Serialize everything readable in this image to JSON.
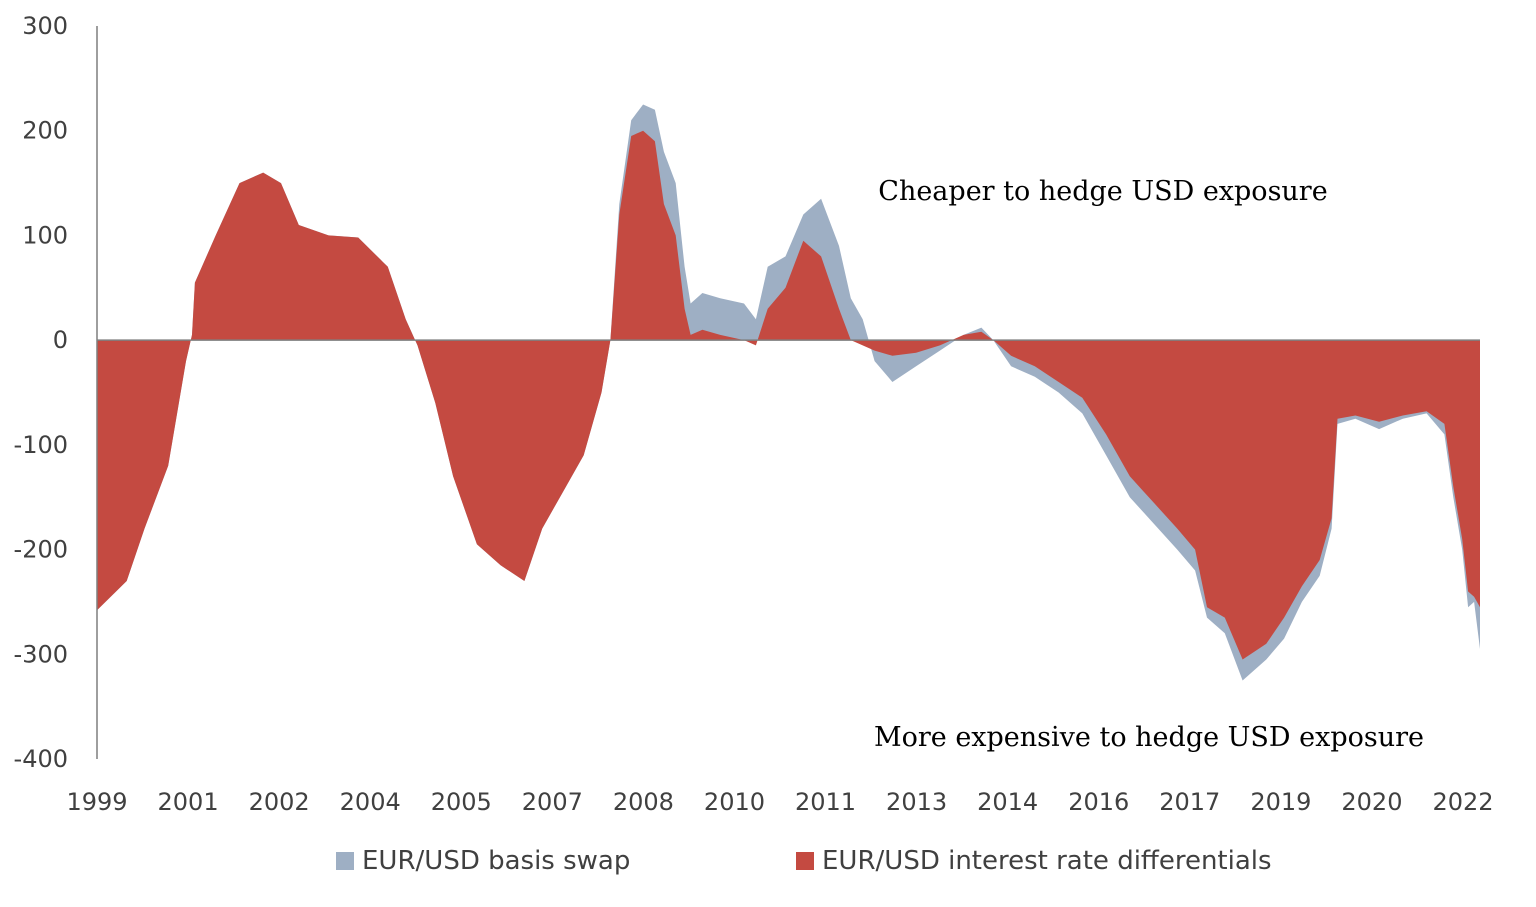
{
  "chart_data": {
    "type": "area",
    "ylim": [
      -400,
      300
    ],
    "y_ticks": [
      300,
      200,
      100,
      0,
      -100,
      -200,
      -300,
      -400
    ],
    "y_tick_labels": [
      "300",
      "200",
      "100",
      "0",
      "-100",
      "-200",
      "-300",
      "-400"
    ],
    "x_tick_labels": [
      "1999",
      "2001",
      "2002",
      "2004",
      "2005",
      "2007",
      "2008",
      "2010",
      "2011",
      "2013",
      "2014",
      "2016",
      "2017",
      "2019",
      "2020",
      "2022"
    ],
    "x_range": [
      1999.0,
      2022.3
    ],
    "grid": false,
    "legend_position": "bottom",
    "annotations": {
      "upper": "Cheaper to hedge USD exposure",
      "lower": "More expensive to hedge USD exposure"
    },
    "series": [
      {
        "name": "EUR/USD basis swap",
        "color": "#9eafc4",
        "points": [
          [
            1999.0,
            -258
          ],
          [
            1999.5,
            -230
          ],
          [
            1999.8,
            -180
          ],
          [
            2000.2,
            -120
          ],
          [
            2000.5,
            -20
          ],
          [
            2000.6,
            5
          ],
          [
            2000.65,
            55
          ],
          [
            2001.0,
            100
          ],
          [
            2001.4,
            150
          ],
          [
            2001.8,
            160
          ],
          [
            2002.1,
            150
          ],
          [
            2002.4,
            110
          ],
          [
            2002.9,
            100
          ],
          [
            2003.4,
            98
          ],
          [
            2003.9,
            70
          ],
          [
            2004.2,
            20
          ],
          [
            2004.4,
            -5
          ],
          [
            2004.7,
            -60
          ],
          [
            2005.0,
            -130
          ],
          [
            2005.4,
            -195
          ],
          [
            2005.8,
            -215
          ],
          [
            2006.2,
            -230
          ],
          [
            2006.5,
            -180
          ],
          [
            2006.9,
            -140
          ],
          [
            2007.2,
            -110
          ],
          [
            2007.5,
            -50
          ],
          [
            2007.65,
            0
          ],
          [
            2007.8,
            130
          ],
          [
            2008.0,
            210
          ],
          [
            2008.2,
            225
          ],
          [
            2008.4,
            220
          ],
          [
            2008.55,
            180
          ],
          [
            2008.75,
            150
          ],
          [
            2008.9,
            70
          ],
          [
            2009.0,
            35
          ],
          [
            2009.2,
            45
          ],
          [
            2009.5,
            40
          ],
          [
            2009.9,
            35
          ],
          [
            2010.1,
            20
          ],
          [
            2010.3,
            70
          ],
          [
            2010.6,
            80
          ],
          [
            2010.9,
            120
          ],
          [
            2011.2,
            135
          ],
          [
            2011.5,
            90
          ],
          [
            2011.7,
            40
          ],
          [
            2011.9,
            20
          ],
          [
            2012.1,
            -20
          ],
          [
            2012.4,
            -40
          ],
          [
            2012.8,
            -25
          ],
          [
            2013.2,
            -10
          ],
          [
            2013.6,
            5
          ],
          [
            2013.9,
            12
          ],
          [
            2014.1,
            0
          ],
          [
            2014.4,
            -25
          ],
          [
            2014.8,
            -35
          ],
          [
            2015.2,
            -50
          ],
          [
            2015.6,
            -70
          ],
          [
            2016.0,
            -110
          ],
          [
            2016.4,
            -150
          ],
          [
            2016.8,
            -175
          ],
          [
            2017.2,
            -200
          ],
          [
            2017.5,
            -220
          ],
          [
            2017.7,
            -265
          ],
          [
            2018.0,
            -280
          ],
          [
            2018.3,
            -325
          ],
          [
            2018.7,
            -305
          ],
          [
            2019.0,
            -285
          ],
          [
            2019.3,
            -250
          ],
          [
            2019.6,
            -225
          ],
          [
            2019.8,
            -180
          ],
          [
            2019.9,
            -80
          ],
          [
            2020.2,
            -75
          ],
          [
            2020.6,
            -85
          ],
          [
            2021.0,
            -75
          ],
          [
            2021.4,
            -70
          ],
          [
            2021.7,
            -90
          ],
          [
            2021.85,
            -150
          ],
          [
            2022.0,
            -200
          ],
          [
            2022.1,
            -255
          ],
          [
            2022.2,
            -250
          ],
          [
            2022.3,
            -295
          ]
        ]
      },
      {
        "name": "EUR/USD interest rate differentials",
        "color": "#c44a41",
        "points": [
          [
            1999.0,
            -258
          ],
          [
            1999.5,
            -230
          ],
          [
            1999.8,
            -180
          ],
          [
            2000.2,
            -120
          ],
          [
            2000.5,
            -20
          ],
          [
            2000.6,
            5
          ],
          [
            2000.65,
            55
          ],
          [
            2001.0,
            100
          ],
          [
            2001.4,
            150
          ],
          [
            2001.8,
            160
          ],
          [
            2002.1,
            150
          ],
          [
            2002.4,
            110
          ],
          [
            2002.9,
            100
          ],
          [
            2003.4,
            98
          ],
          [
            2003.9,
            70
          ],
          [
            2004.2,
            20
          ],
          [
            2004.4,
            -5
          ],
          [
            2004.7,
            -60
          ],
          [
            2005.0,
            -130
          ],
          [
            2005.4,
            -195
          ],
          [
            2005.8,
            -215
          ],
          [
            2006.2,
            -230
          ],
          [
            2006.5,
            -180
          ],
          [
            2006.9,
            -140
          ],
          [
            2007.2,
            -110
          ],
          [
            2007.5,
            -50
          ],
          [
            2007.65,
            0
          ],
          [
            2007.8,
            120
          ],
          [
            2008.0,
            195
          ],
          [
            2008.2,
            200
          ],
          [
            2008.4,
            190
          ],
          [
            2008.55,
            130
          ],
          [
            2008.75,
            100
          ],
          [
            2008.9,
            30
          ],
          [
            2009.0,
            5
          ],
          [
            2009.2,
            10
          ],
          [
            2009.5,
            5
          ],
          [
            2009.9,
            0
          ],
          [
            2010.1,
            -5
          ],
          [
            2010.3,
            30
          ],
          [
            2010.6,
            50
          ],
          [
            2010.9,
            95
          ],
          [
            2011.2,
            80
          ],
          [
            2011.5,
            30
          ],
          [
            2011.7,
            0
          ],
          [
            2011.9,
            -5
          ],
          [
            2012.1,
            -10
          ],
          [
            2012.4,
            -15
          ],
          [
            2012.8,
            -12
          ],
          [
            2013.2,
            -5
          ],
          [
            2013.6,
            5
          ],
          [
            2013.9,
            8
          ],
          [
            2014.1,
            0
          ],
          [
            2014.4,
            -15
          ],
          [
            2014.8,
            -25
          ],
          [
            2015.2,
            -40
          ],
          [
            2015.6,
            -55
          ],
          [
            2016.0,
            -90
          ],
          [
            2016.4,
            -130
          ],
          [
            2016.8,
            -155
          ],
          [
            2017.2,
            -180
          ],
          [
            2017.5,
            -200
          ],
          [
            2017.7,
            -255
          ],
          [
            2018.0,
            -265
          ],
          [
            2018.3,
            -305
          ],
          [
            2018.7,
            -290
          ],
          [
            2019.0,
            -265
          ],
          [
            2019.3,
            -235
          ],
          [
            2019.6,
            -210
          ],
          [
            2019.8,
            -170
          ],
          [
            2019.9,
            -75
          ],
          [
            2020.2,
            -72
          ],
          [
            2020.6,
            -78
          ],
          [
            2021.0,
            -72
          ],
          [
            2021.4,
            -68
          ],
          [
            2021.7,
            -80
          ],
          [
            2021.85,
            -140
          ],
          [
            2022.0,
            -190
          ],
          [
            2022.1,
            -240
          ],
          [
            2022.2,
            -245
          ],
          [
            2022.3,
            -255
          ]
        ]
      }
    ],
    "baseline_color": "#e8a898"
  }
}
